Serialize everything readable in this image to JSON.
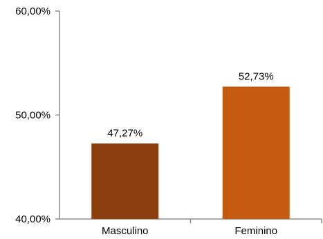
{
  "chart_data": {
    "type": "bar",
    "categories": [
      "Masculino",
      "Feminino"
    ],
    "series": [
      {
        "values": [
          47.27,
          52.73
        ]
      }
    ],
    "data_labels": [
      "47,27%",
      "52,73%"
    ],
    "y_ticks": [
      40,
      50,
      60
    ],
    "y_tick_labels": [
      "40,00%",
      "50,00%",
      "60,00%"
    ],
    "ylim": [
      40,
      60
    ],
    "grid": false,
    "legend": "none",
    "title": "",
    "xlabel": "",
    "ylabel": "",
    "colors": [
      "#8B3F0E",
      "#C55A11"
    ]
  }
}
